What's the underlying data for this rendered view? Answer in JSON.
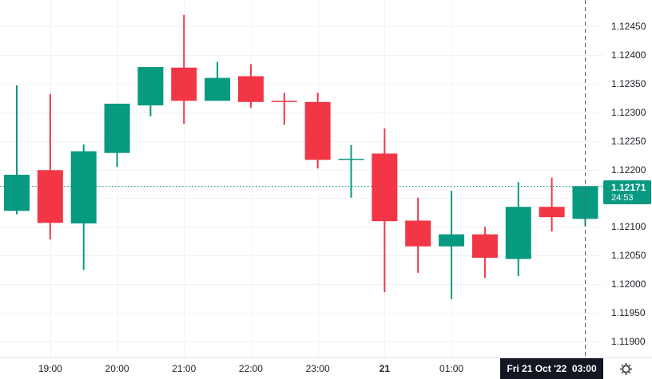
{
  "chart_data": {
    "type": "candlestick",
    "interval_minutes": 30,
    "up_color": "#089981",
    "down_color": "#f23645",
    "grid_color": "#f0f3fa",
    "y_ticks": [
      "1.12450",
      "1.12400",
      "1.12350",
      "1.12300",
      "1.12250",
      "1.12200",
      "1.12150",
      "1.12100",
      "1.12050",
      "1.12000",
      "1.11950",
      "1.11900"
    ],
    "x_ticks": [
      {
        "label": "19:00",
        "index": 1,
        "bold": false
      },
      {
        "label": "20:00",
        "index": 3,
        "bold": false
      },
      {
        "label": "21:00",
        "index": 5,
        "bold": false
      },
      {
        "label": "22:00",
        "index": 7,
        "bold": false
      },
      {
        "label": "23:00",
        "index": 9,
        "bold": false
      },
      {
        "label": "21",
        "index": 11,
        "bold": true
      },
      {
        "label": "01:00",
        "index": 13,
        "bold": false
      }
    ],
    "candles": [
      {
        "t": "18:30",
        "o": 1.12128,
        "h": 1.12347,
        "l": 1.12122,
        "c": 1.12191
      },
      {
        "t": "19:00",
        "o": 1.12199,
        "h": 1.12332,
        "l": 1.12078,
        "c": 1.12107
      },
      {
        "t": "19:30",
        "o": 1.12106,
        "h": 1.12244,
        "l": 1.12025,
        "c": 1.12232
      },
      {
        "t": "20:00",
        "o": 1.12229,
        "h": 1.12315,
        "l": 1.12205,
        "c": 1.12315
      },
      {
        "t": "20:30",
        "o": 1.12312,
        "h": 1.12379,
        "l": 1.12293,
        "c": 1.12379
      },
      {
        "t": "21:00",
        "o": 1.12378,
        "h": 1.1247,
        "l": 1.1228,
        "c": 1.1232
      },
      {
        "t": "21:30",
        "o": 1.1232,
        "h": 1.12388,
        "l": 1.1232,
        "c": 1.1236
      },
      {
        "t": "22:00",
        "o": 1.12363,
        "h": 1.12384,
        "l": 1.12308,
        "c": 1.12318
      },
      {
        "t": "22:30",
        "o": 1.1232,
        "h": 1.12334,
        "l": 1.12278,
        "c": 1.12318
      },
      {
        "t": "23:00",
        "o": 1.12318,
        "h": 1.12334,
        "l": 1.12202,
        "c": 1.12217
      },
      {
        "t": "23:30",
        "o": 1.12218,
        "h": 1.12243,
        "l": 1.12151,
        "c": 1.12219
      },
      {
        "t": "00:00",
        "o": 1.12228,
        "h": 1.12272,
        "l": 1.11986,
        "c": 1.1211
      },
      {
        "t": "00:30",
        "o": 1.12111,
        "h": 1.12151,
        "l": 1.1202,
        "c": 1.12066
      },
      {
        "t": "01:00",
        "o": 1.12066,
        "h": 1.12163,
        "l": 1.11974,
        "c": 1.12087
      },
      {
        "t": "01:30",
        "o": 1.12087,
        "h": 1.121,
        "l": 1.12011,
        "c": 1.12046
      },
      {
        "t": "02:00",
        "o": 1.12044,
        "h": 1.12178,
        "l": 1.12014,
        "c": 1.12135
      },
      {
        "t": "02:30",
        "o": 1.12135,
        "h": 1.12186,
        "l": 1.12092,
        "c": 1.12117
      },
      {
        "t": "03:00",
        "o": 1.12114,
        "h": 1.12171,
        "l": 1.12102,
        "c": 1.12171
      }
    ],
    "last_price": "1.12171",
    "countdown": "24:53",
    "time_badge_label": "Fri 21 Oct '22  03:00"
  }
}
